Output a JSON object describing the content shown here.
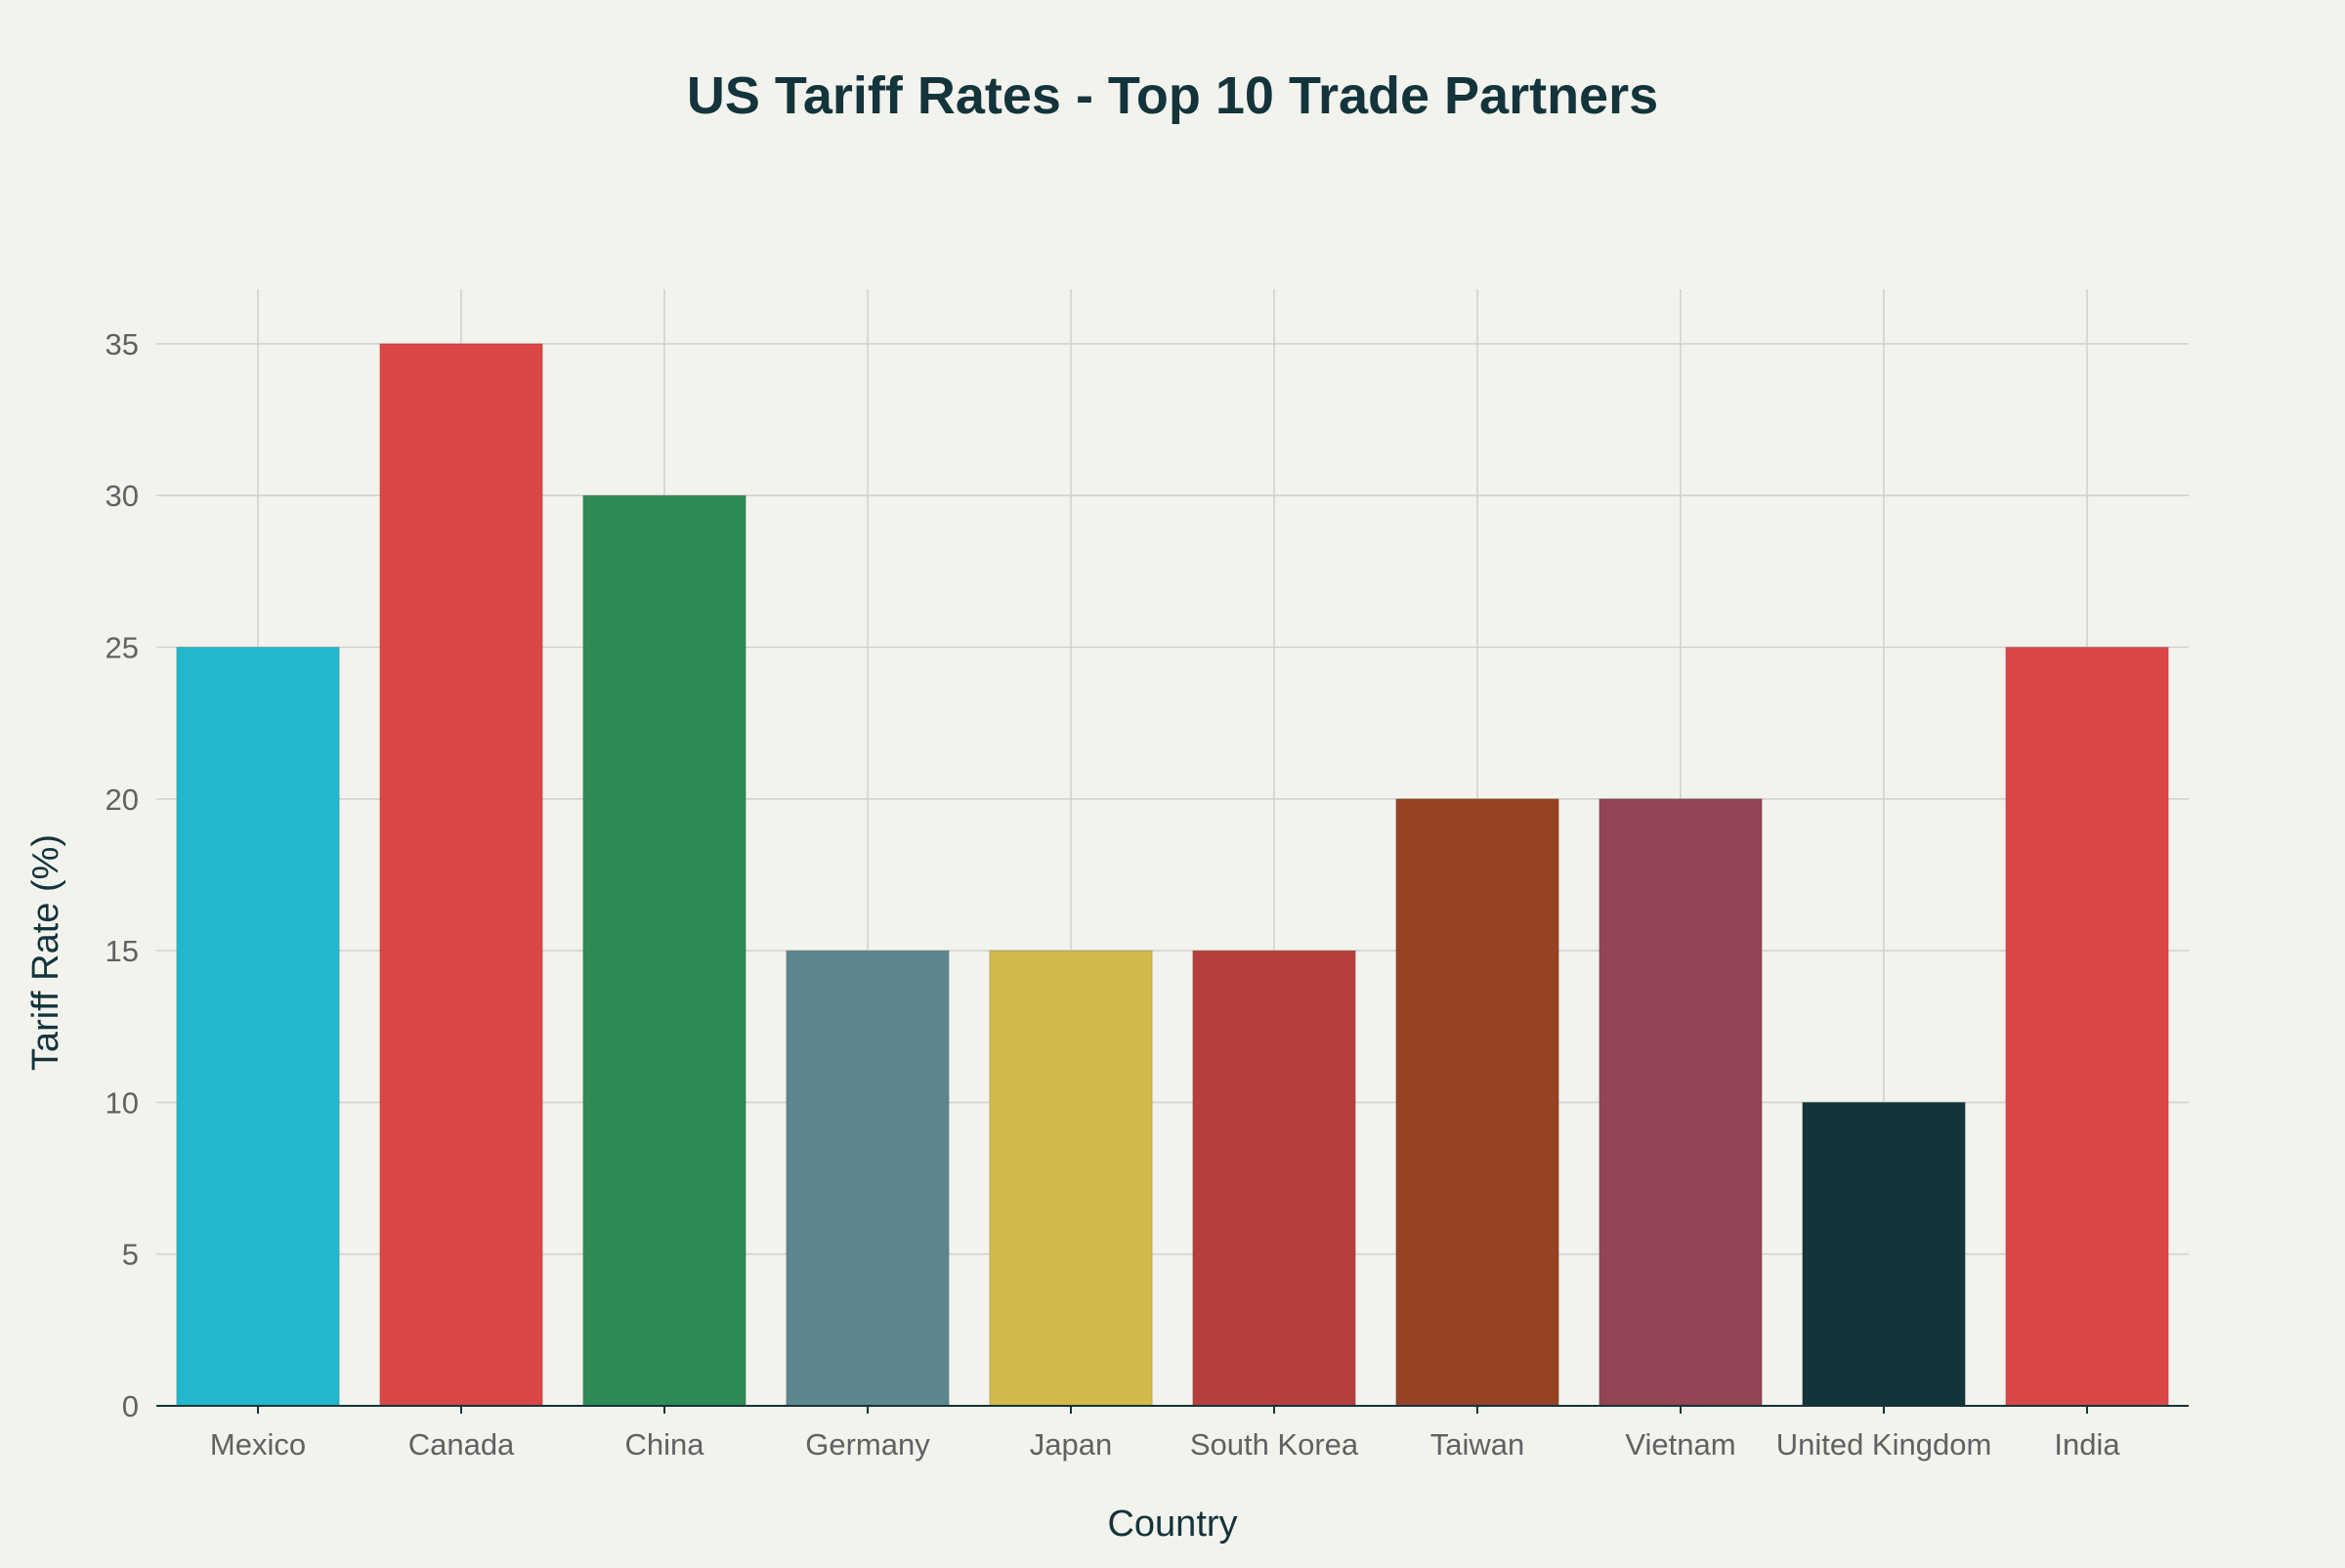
{
  "chart_data": {
    "type": "bar",
    "title": "US Tariff Rates - Top 10 Trade Partners",
    "xlabel": "Country",
    "ylabel": "Tariff Rate (%)",
    "ylim": [
      0,
      36.8
    ],
    "yticks": [
      0,
      5,
      10,
      15,
      20,
      25,
      30,
      35
    ],
    "grid": true,
    "legend": "none",
    "categories": [
      "Mexico",
      "Canada",
      "China",
      "Germany",
      "Japan",
      "South Korea",
      "Taiwan",
      "Vietnam",
      "United Kingdom",
      "India"
    ],
    "values": [
      25,
      35,
      30,
      15,
      15,
      15,
      20,
      20,
      10,
      25
    ],
    "colors": [
      "#21b8cd",
      "#dc4646",
      "#2e8b57",
      "#5d878f",
      "#d2b94b",
      "#b63f3c",
      "#964325",
      "#944454",
      "#13343b",
      "#dc4646"
    ]
  }
}
